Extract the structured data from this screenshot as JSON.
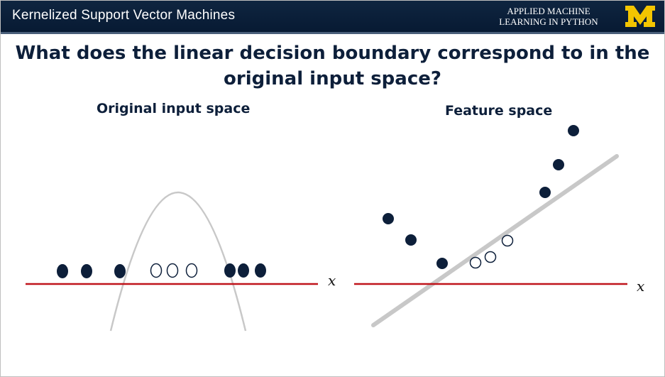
{
  "header": {
    "title": "Kernelized Support Vector Machines",
    "brand_line1": "APPLIED MACHINE",
    "brand_line2": "LEARNING IN PYTHON",
    "logo_icon": "block-m-logo-icon"
  },
  "heading": {
    "line1": "What does the linear decision boundary correspond to in the",
    "line2": "original input space?"
  },
  "left_panel": {
    "title": "Original input space",
    "axis_label": "x",
    "points": [
      {
        "class": "dark"
      },
      {
        "class": "dark"
      },
      {
        "class": "dark"
      },
      {
        "class": "light"
      },
      {
        "class": "light"
      },
      {
        "class": "light"
      },
      {
        "class": "dark"
      },
      {
        "class": "dark"
      },
      {
        "class": "dark"
      }
    ]
  },
  "right_panel": {
    "title": "Feature space",
    "axis_label": "x",
    "points": [
      {
        "class": "dark"
      },
      {
        "class": "dark"
      },
      {
        "class": "dark"
      },
      {
        "class": "light"
      },
      {
        "class": "light"
      },
      {
        "class": "light"
      },
      {
        "class": "dark"
      },
      {
        "class": "dark"
      },
      {
        "class": "dark"
      }
    ]
  },
  "colors": {
    "header_bg": "#0b213d",
    "axis_line": "#c0141b",
    "dark_point": "#0d1f3a",
    "light_point": "#ffffff",
    "boundary": "#c8c8c8",
    "logo_gold": "#f3c500"
  }
}
